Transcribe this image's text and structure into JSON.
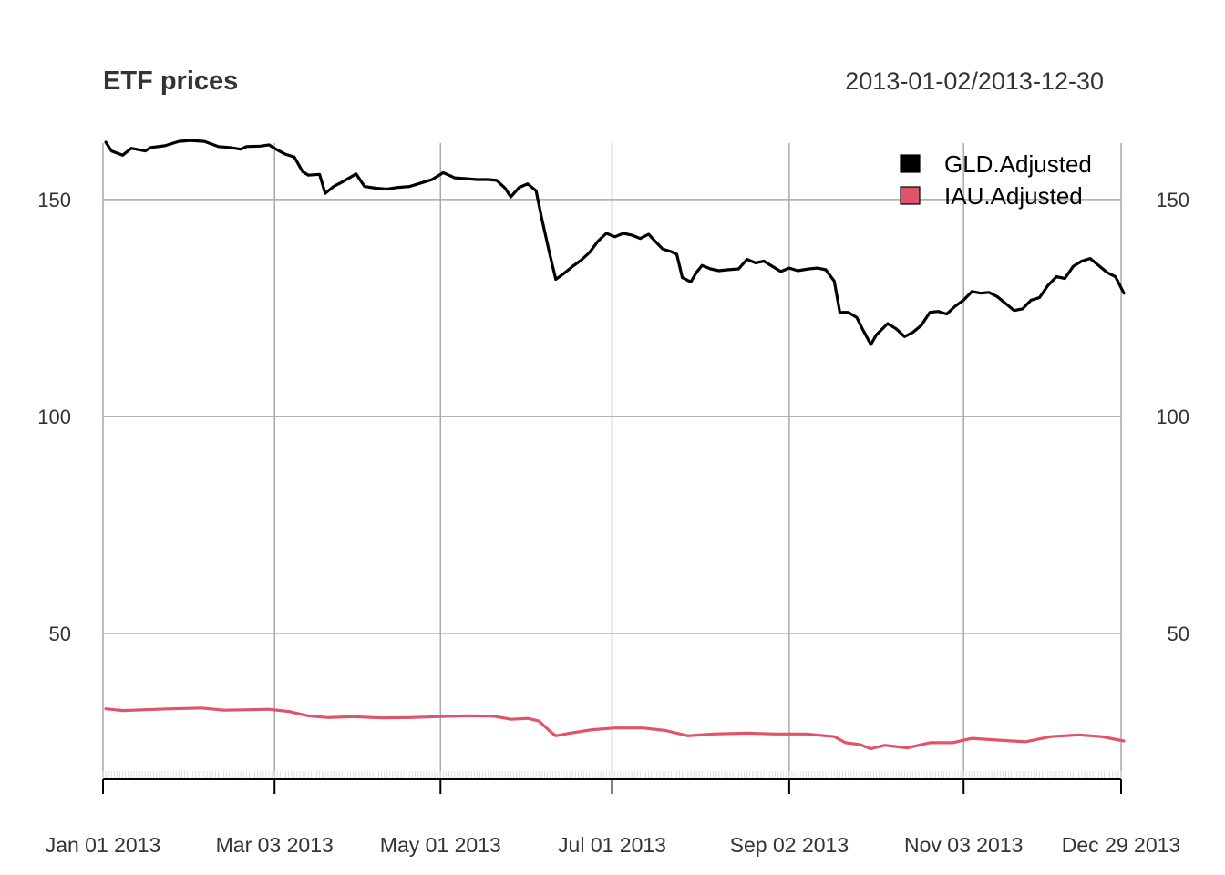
{
  "chart_data": {
    "type": "line",
    "title": "ETF prices",
    "date_range": "2013-01-02/2013-12-30",
    "ylim": [
      17,
      163
    ],
    "yticks": [
      50,
      100,
      150
    ],
    "ytick_labels": [
      "50",
      "100",
      "150"
    ],
    "xlim": [
      "2013-01-01",
      "2013-12-29"
    ],
    "xticks": [
      "2013-01-01",
      "2013-03-03",
      "2013-05-01",
      "2013-07-01",
      "2013-09-02",
      "2013-11-03",
      "2013-12-29"
    ],
    "xtick_labels": [
      "Jan 01 2013",
      "Mar 03 2013",
      "May 01 2013",
      "Jul 01 2013",
      "Sep 02 2013",
      "Nov 03 2013",
      "Dec 29 2013"
    ],
    "grid": true,
    "legend_position": "top-right",
    "series": [
      {
        "name": "GLD.Adjusted",
        "color": "#000000",
        "points": [
          [
            "2013-01-02",
            163.2
          ],
          [
            "2013-01-04",
            161.2
          ],
          [
            "2013-01-08",
            160.2
          ],
          [
            "2013-01-11",
            161.8
          ],
          [
            "2013-01-16",
            161.2
          ],
          [
            "2013-01-18",
            162.0
          ],
          [
            "2013-01-23",
            162.4
          ],
          [
            "2013-01-28",
            163.4
          ],
          [
            "2013-02-01",
            163.6
          ],
          [
            "2013-02-06",
            163.4
          ],
          [
            "2013-02-11",
            162.2
          ],
          [
            "2013-02-15",
            162.0
          ],
          [
            "2013-02-19",
            161.6
          ],
          [
            "2013-02-21",
            162.2
          ],
          [
            "2013-02-26",
            162.3
          ],
          [
            "2013-03-01",
            162.6
          ],
          [
            "2013-03-04",
            161.4
          ],
          [
            "2013-03-07",
            160.4
          ],
          [
            "2013-03-10",
            159.8
          ],
          [
            "2013-03-13",
            156.4
          ],
          [
            "2013-03-15",
            155.6
          ],
          [
            "2013-03-19",
            155.8
          ],
          [
            "2013-03-21",
            151.4
          ],
          [
            "2013-03-24",
            153.0
          ],
          [
            "2013-03-27",
            154.0
          ],
          [
            "2013-04-01",
            155.9
          ],
          [
            "2013-04-04",
            153.0
          ],
          [
            "2013-04-08",
            152.6
          ],
          [
            "2013-04-12",
            152.4
          ],
          [
            "2013-04-16",
            152.8
          ],
          [
            "2013-04-20",
            153.0
          ],
          [
            "2013-04-24",
            153.8
          ],
          [
            "2013-04-28",
            154.6
          ],
          [
            "2013-05-02",
            156.2
          ],
          [
            "2013-05-06",
            155.0
          ],
          [
            "2013-05-10",
            154.8
          ],
          [
            "2013-05-14",
            154.6
          ],
          [
            "2013-05-18",
            154.6
          ],
          [
            "2013-05-21",
            154.4
          ],
          [
            "2013-05-24",
            152.6
          ],
          [
            "2013-05-26",
            150.6
          ],
          [
            "2013-05-29",
            152.8
          ],
          [
            "2013-06-01",
            153.6
          ],
          [
            "2013-06-04",
            152.0
          ],
          [
            "2013-06-06",
            145.6
          ],
          [
            "2013-06-09",
            137.0
          ],
          [
            "2013-06-11",
            131.6
          ],
          [
            "2013-06-14",
            133.0
          ],
          [
            "2013-06-17",
            134.6
          ],
          [
            "2013-06-20",
            136.0
          ],
          [
            "2013-06-23",
            137.8
          ],
          [
            "2013-06-26",
            140.4
          ],
          [
            "2013-06-29",
            142.2
          ],
          [
            "2013-07-02",
            141.4
          ],
          [
            "2013-07-05",
            142.2
          ],
          [
            "2013-07-08",
            141.8
          ],
          [
            "2013-07-11",
            141.0
          ],
          [
            "2013-07-14",
            142.0
          ],
          [
            "2013-07-16",
            140.6
          ],
          [
            "2013-07-19",
            138.6
          ],
          [
            "2013-07-22",
            138.0
          ],
          [
            "2013-07-24",
            137.4
          ],
          [
            "2013-07-26",
            132.0
          ],
          [
            "2013-07-29",
            131.0
          ],
          [
            "2013-07-31",
            133.2
          ],
          [
            "2013-08-02",
            134.8
          ],
          [
            "2013-08-05",
            134.0
          ],
          [
            "2013-08-08",
            133.6
          ],
          [
            "2013-08-11",
            133.8
          ],
          [
            "2013-08-15",
            134.0
          ],
          [
            "2013-08-18",
            136.2
          ],
          [
            "2013-08-21",
            135.4
          ],
          [
            "2013-08-24",
            135.8
          ],
          [
            "2013-08-27",
            134.6
          ],
          [
            "2013-08-30",
            133.4
          ],
          [
            "2013-09-02",
            134.2
          ],
          [
            "2013-09-05",
            133.6
          ],
          [
            "2013-09-09",
            134.0
          ],
          [
            "2013-09-12",
            134.2
          ],
          [
            "2013-09-15",
            133.8
          ],
          [
            "2013-09-18",
            131.2
          ],
          [
            "2013-09-20",
            124.0
          ],
          [
            "2013-09-23",
            124.0
          ],
          [
            "2013-09-26",
            122.8
          ],
          [
            "2013-09-28",
            120.2
          ],
          [
            "2013-10-01",
            116.6
          ],
          [
            "2013-10-03",
            118.8
          ],
          [
            "2013-10-07",
            121.4
          ],
          [
            "2013-10-10",
            120.2
          ],
          [
            "2013-10-13",
            118.4
          ],
          [
            "2013-10-16",
            119.4
          ],
          [
            "2013-10-19",
            121.0
          ],
          [
            "2013-10-22",
            124.0
          ],
          [
            "2013-10-25",
            124.2
          ],
          [
            "2013-10-28",
            123.6
          ],
          [
            "2013-10-31",
            125.4
          ],
          [
            "2013-11-03",
            126.8
          ],
          [
            "2013-11-06",
            128.8
          ],
          [
            "2013-11-09",
            128.4
          ],
          [
            "2013-11-12",
            128.6
          ],
          [
            "2013-11-15",
            127.6
          ],
          [
            "2013-11-18",
            126.0
          ],
          [
            "2013-11-21",
            124.4
          ],
          [
            "2013-11-24",
            124.8
          ],
          [
            "2013-11-27",
            126.8
          ],
          [
            "2013-11-30",
            127.4
          ],
          [
            "2013-12-03",
            130.2
          ],
          [
            "2013-12-06",
            132.2
          ],
          [
            "2013-12-09",
            131.8
          ],
          [
            "2013-12-12",
            134.6
          ],
          [
            "2013-12-15",
            135.8
          ],
          [
            "2013-12-18",
            136.4
          ],
          [
            "2013-12-21",
            134.8
          ],
          [
            "2013-12-24",
            133.2
          ],
          [
            "2013-12-27",
            132.2
          ],
          [
            "2013-12-30",
            128.4
          ]
        ]
      },
      {
        "name": "IAU.Adjusted",
        "color": "#DF536B",
        "points": [
          [
            "2013-01-02",
            32.6
          ],
          [
            "2013-01-08",
            32.2
          ],
          [
            "2013-01-16",
            32.4
          ],
          [
            "2013-01-25",
            32.6
          ],
          [
            "2013-02-05",
            32.8
          ],
          [
            "2013-02-13",
            32.3
          ],
          [
            "2013-02-22",
            32.4
          ],
          [
            "2013-03-01",
            32.5
          ],
          [
            "2013-03-08",
            32.0
          ],
          [
            "2013-03-15",
            31.0
          ],
          [
            "2013-03-22",
            30.6
          ],
          [
            "2013-03-31",
            30.8
          ],
          [
            "2013-04-10",
            30.5
          ],
          [
            "2013-04-20",
            30.6
          ],
          [
            "2013-04-30",
            30.8
          ],
          [
            "2013-05-10",
            31.0
          ],
          [
            "2013-05-20",
            30.9
          ],
          [
            "2013-05-26",
            30.2
          ],
          [
            "2013-06-01",
            30.4
          ],
          [
            "2013-06-05",
            29.8
          ],
          [
            "2013-06-09",
            27.4
          ],
          [
            "2013-06-11",
            26.4
          ],
          [
            "2013-06-16",
            27.0
          ],
          [
            "2013-06-24",
            27.8
          ],
          [
            "2013-07-02",
            28.2
          ],
          [
            "2013-07-12",
            28.2
          ],
          [
            "2013-07-20",
            27.6
          ],
          [
            "2013-07-28",
            26.4
          ],
          [
            "2013-08-06",
            26.8
          ],
          [
            "2013-08-18",
            27.0
          ],
          [
            "2013-08-28",
            26.8
          ],
          [
            "2013-09-08",
            26.8
          ],
          [
            "2013-09-18",
            26.2
          ],
          [
            "2013-09-22",
            24.8
          ],
          [
            "2013-09-27",
            24.4
          ],
          [
            "2013-10-01",
            23.4
          ],
          [
            "2013-10-06",
            24.2
          ],
          [
            "2013-10-14",
            23.6
          ],
          [
            "2013-10-22",
            24.8
          ],
          [
            "2013-10-30",
            24.8
          ],
          [
            "2013-11-06",
            25.8
          ],
          [
            "2013-11-15",
            25.4
          ],
          [
            "2013-11-25",
            25.0
          ],
          [
            "2013-12-04",
            26.2
          ],
          [
            "2013-12-14",
            26.6
          ],
          [
            "2013-12-22",
            26.2
          ],
          [
            "2013-12-30",
            25.2
          ]
        ]
      }
    ]
  }
}
